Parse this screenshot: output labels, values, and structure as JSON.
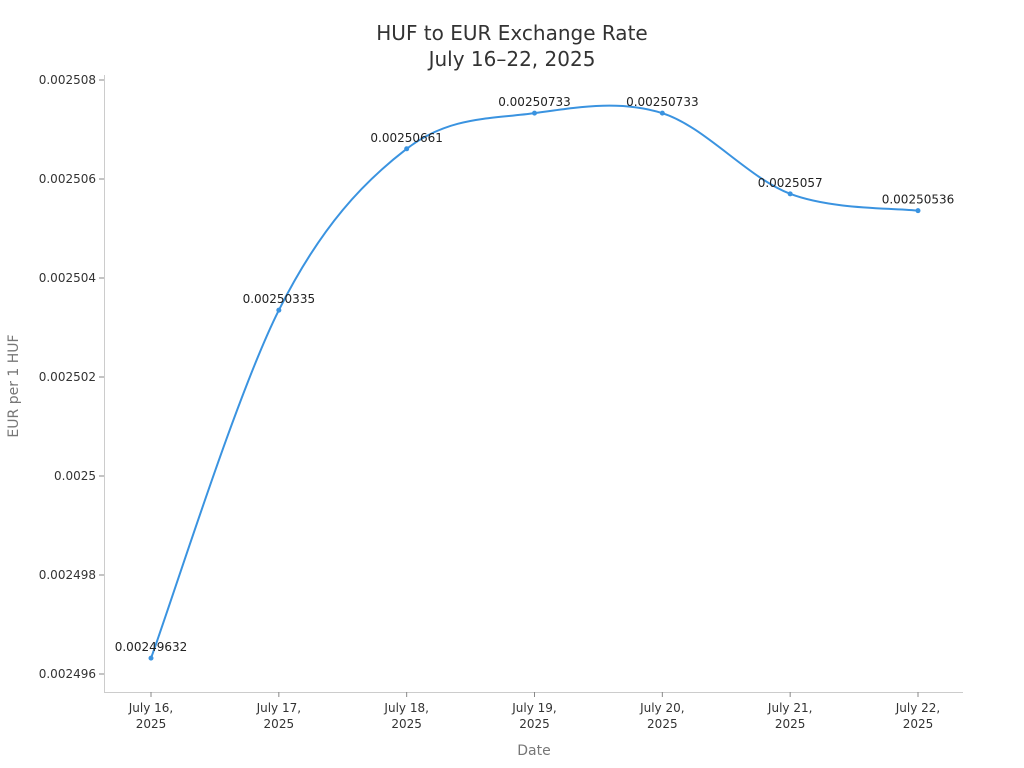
{
  "chart_data": {
    "type": "line",
    "title": "HUF to EUR Exchange Rate",
    "subtitle": "July 16–22, 2025",
    "xlabel": "Date",
    "ylabel": "EUR per 1 HUF",
    "categories": [
      [
        "July 16,",
        "2025"
      ],
      [
        "July 17,",
        "2025"
      ],
      [
        "July 18,",
        "2025"
      ],
      [
        "July 19,",
        "2025"
      ],
      [
        "July 20,",
        "2025"
      ],
      [
        "July 21,",
        "2025"
      ],
      [
        "July 22,",
        "2025"
      ]
    ],
    "series": [
      {
        "name": "EUR per 1 HUF",
        "values": [
          0.00249632,
          0.00250335,
          0.00250661,
          0.00250733,
          0.00250733,
          0.0025057,
          0.00250536
        ],
        "labels": [
          "0.00249632",
          "0.00250335",
          "0.00250661",
          "0.00250733",
          "0.00250733",
          "0.0025057",
          "0.00250536"
        ],
        "color": "#3a93e0",
        "smooth": true
      }
    ],
    "yticks": [
      0.002496,
      0.002498,
      0.0025,
      0.002502,
      0.002504,
      0.002506,
      0.002508
    ],
    "ytick_labels": [
      "0.002496",
      "0.002498",
      "0.0025",
      "0.002502",
      "0.002504",
      "0.002506",
      "0.002508"
    ],
    "ylim": [
      0.0024956,
      0.0025082
    ],
    "grid": false,
    "legend": "none"
  }
}
